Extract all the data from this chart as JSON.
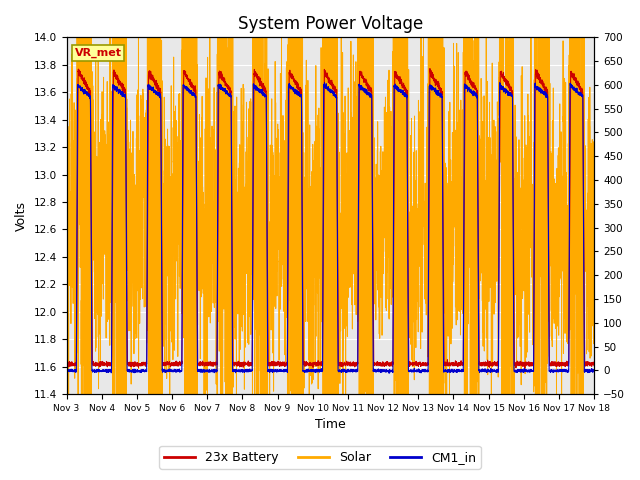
{
  "title": "System Power Voltage",
  "xlabel": "Time",
  "ylabel": "Volts",
  "ylim_left": [
    11.4,
    14.0
  ],
  "ylim_right": [
    -50,
    700
  ],
  "yticks_left": [
    11.4,
    11.6,
    11.8,
    12.0,
    12.2,
    12.4,
    12.6,
    12.8,
    13.0,
    13.2,
    13.4,
    13.6,
    13.8,
    14.0
  ],
  "yticks_right": [
    -50,
    0,
    50,
    100,
    150,
    200,
    250,
    300,
    350,
    400,
    450,
    500,
    550,
    600,
    650,
    700
  ],
  "xtick_labels": [
    "Nov 3",
    "Nov 4",
    "Nov 5",
    "Nov 6",
    "Nov 7",
    "Nov 8",
    "Nov 9",
    "Nov 10",
    "Nov 11",
    "Nov 12",
    "Nov 13",
    "Nov 14",
    "Nov 15",
    "Nov 16",
    "Nov 17",
    "Nov 18"
  ],
  "n_days": 15,
  "color_battery": "#cc0000",
  "color_solar": "#ffaa00",
  "color_cm1": "#0000cc",
  "legend_labels": [
    "23x Battery",
    "Solar",
    "CM1_in"
  ],
  "vr_met_label": "VR_met",
  "background_plot": "#e8e8e8",
  "grid_color": "#ffffff",
  "title_fontsize": 12
}
